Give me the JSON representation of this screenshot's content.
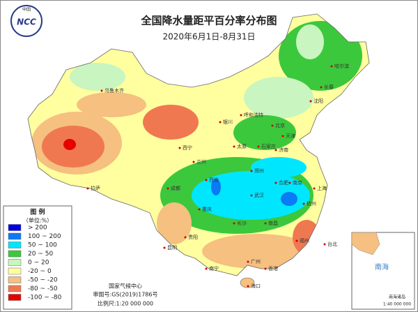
{
  "header": {
    "title": "全国降水量距平百分率分布图",
    "date": "2020年6月1日-8月31日"
  },
  "logo": {
    "top": "中国",
    "text": "NCC"
  },
  "legend": {
    "title": "图 例",
    "unit": "（单位:%）",
    "items": [
      {
        "label": "> 200",
        "color": "#0000e6"
      },
      {
        "label": "100 ~ 200",
        "color": "#0a7af5"
      },
      {
        "label": "50 ~ 100",
        "color": "#00e6ff"
      },
      {
        "label": "20 ~ 50",
        "color": "#3cc83c"
      },
      {
        "label": "0 ~ 20",
        "color": "#c8f5c0"
      },
      {
        "label": "-20 ~ 0",
        "color": "#ffffa0"
      },
      {
        "label": "-50 ~ -20",
        "color": "#f5c080"
      },
      {
        "label": "-80 ~ -50",
        "color": "#f07850"
      },
      {
        "label": "-100 ~ -80",
        "color": "#e60000"
      }
    ]
  },
  "footer": {
    "org": "国家气候中心",
    "review": "审图号:GS(2019)1786号",
    "scale": "比例尺:1:20 000 000"
  },
  "inset": {
    "sea": "南海",
    "islands": "南海诸岛",
    "scale": "1:40 000 000"
  },
  "cities": [
    "乌鲁木齐",
    "西宁",
    "兰州",
    "银川",
    "呼和浩特",
    "北京",
    "天津",
    "石家庄",
    "太原",
    "济南",
    "郑州",
    "西安",
    "成都",
    "重庆",
    "贵阳",
    "昆明",
    "南宁",
    "广州",
    "香港",
    "海口",
    "长沙",
    "南昌",
    "武汉",
    "合肥",
    "南京",
    "上海",
    "杭州",
    "福州",
    "台北",
    "沈阳",
    "长春",
    "哈尔滨",
    "拉萨"
  ]
}
